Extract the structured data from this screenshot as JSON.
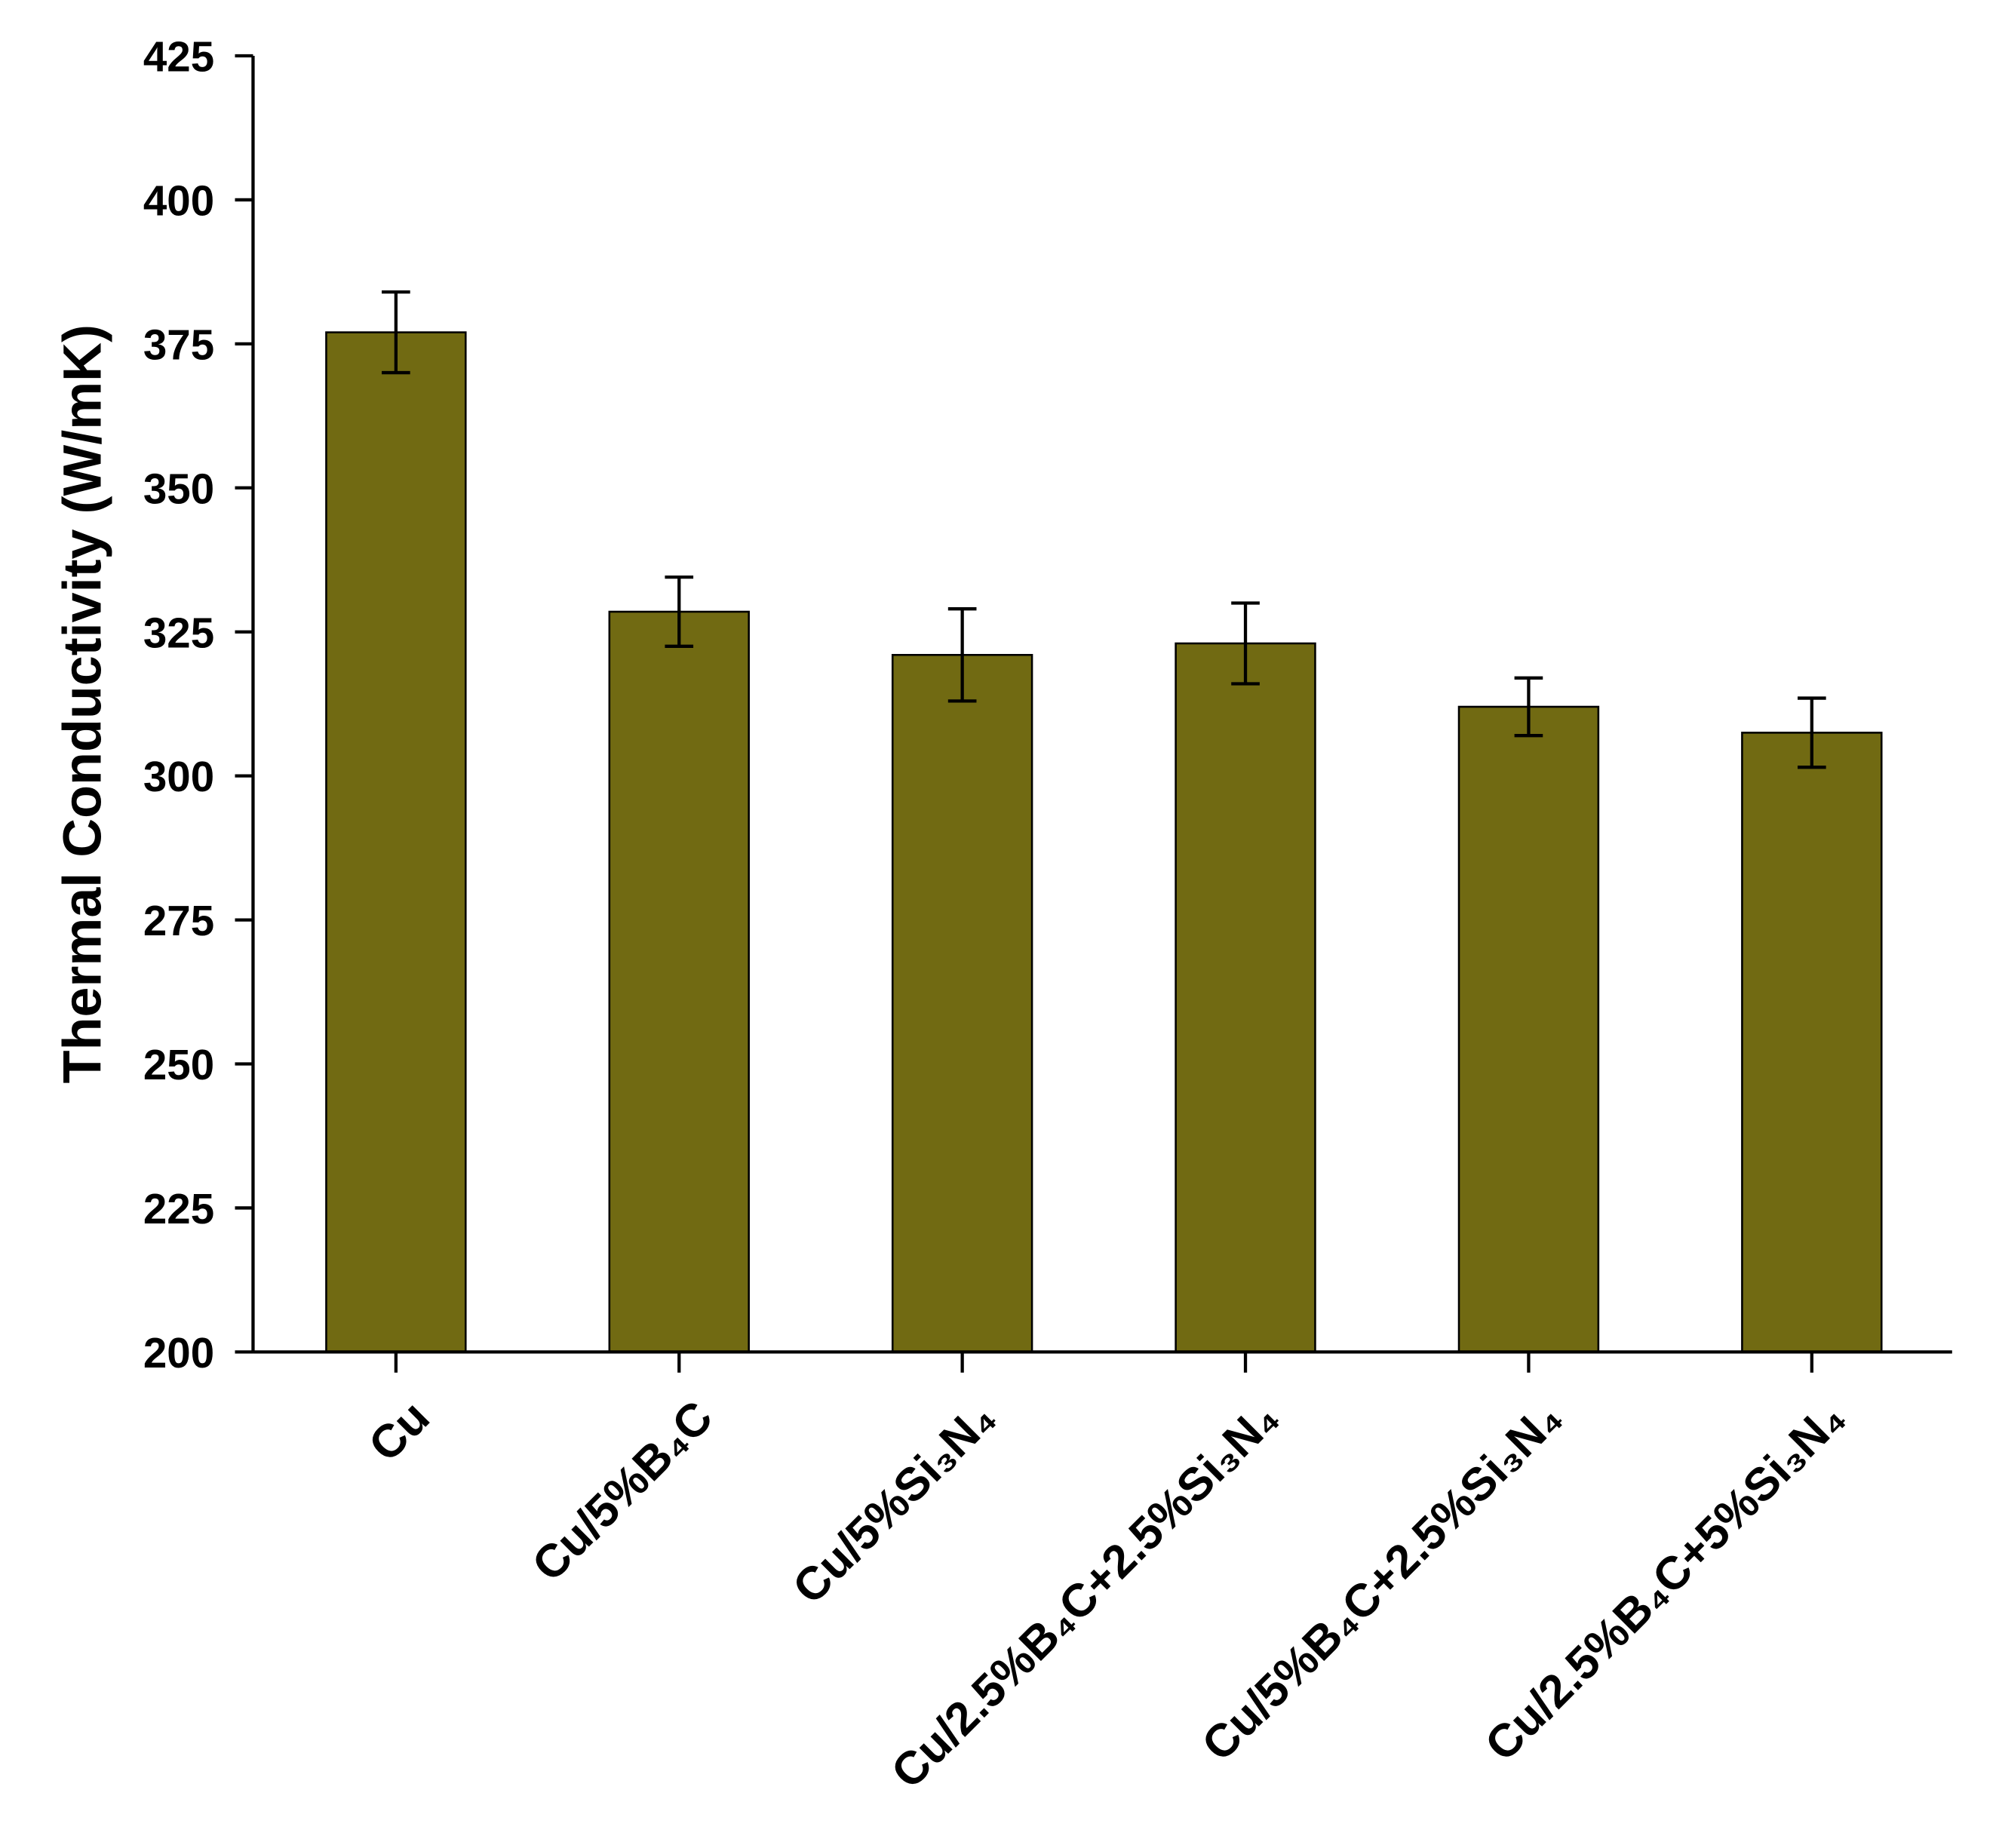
{
  "chart_data": {
    "type": "bar",
    "y_label": "Thermal Conductivity (W/mK)",
    "categories": [
      "Cu",
      "Cu/5%B₄C",
      "Cu/5%Si₃N₄",
      "Cu/2.5%B₄C+2.5%Si₃N₄",
      "Cu/5%B₄C+2.5%Si₃N₄",
      "Cu/2.5%B₄C+5%Si₃N₄"
    ],
    "values": [
      377,
      328.5,
      321,
      323,
      312,
      307.5
    ],
    "errors": [
      7,
      6,
      8,
      7,
      5,
      6
    ],
    "color": "#716a12",
    "ylim": [
      200,
      425
    ],
    "yticks": [
      200,
      225,
      250,
      275,
      300,
      325,
      350,
      375,
      400,
      425
    ]
  }
}
